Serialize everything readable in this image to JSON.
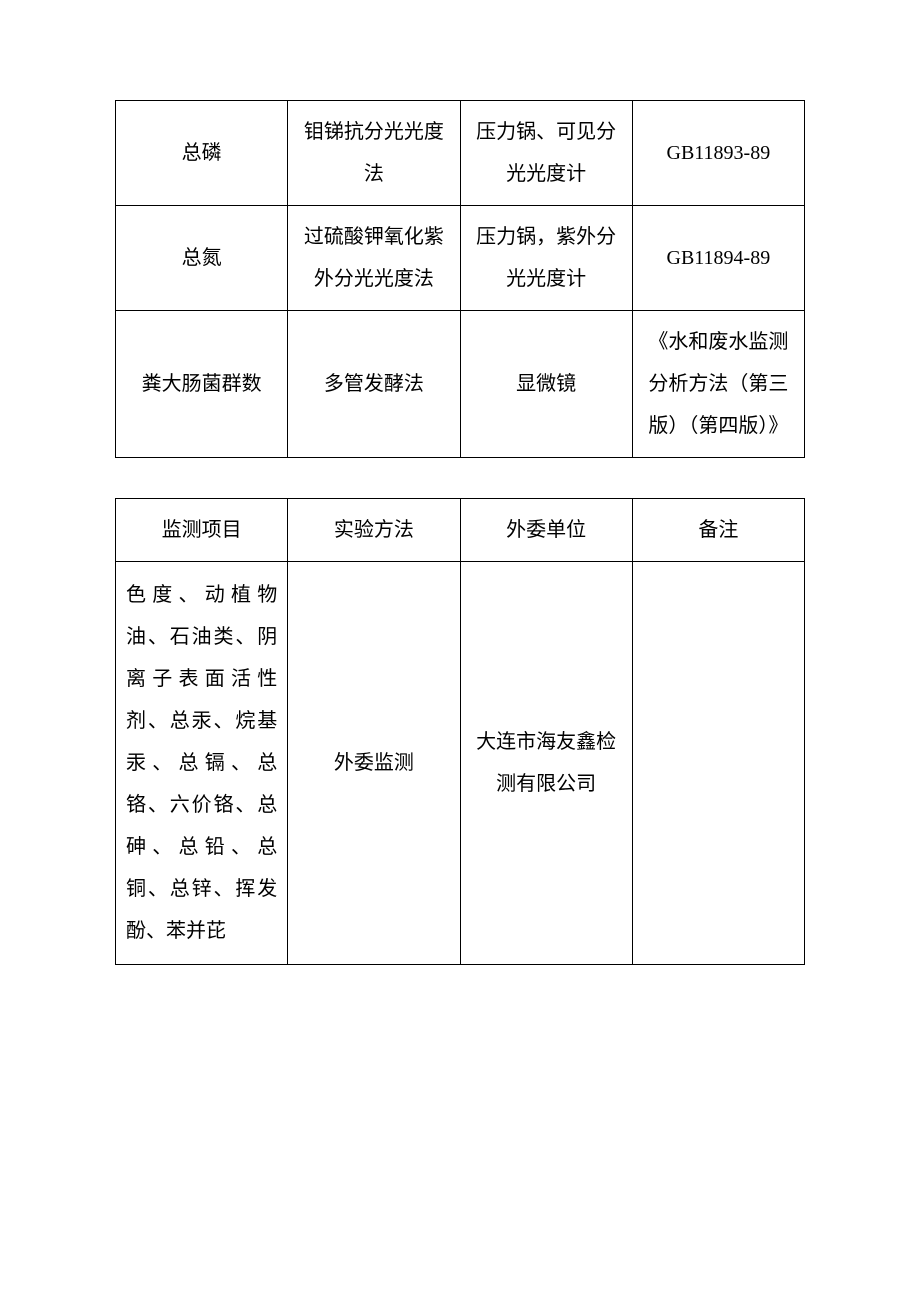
{
  "table1": {
    "rows": [
      {
        "item": "总磷",
        "method": "钼锑抗分光光度法",
        "equipment": "压力锅、可见分光光度计",
        "standard": "GB11893-89"
      },
      {
        "item": "总氮",
        "method": "过硫酸钾氧化紫外分光光度法",
        "equipment": "压力锅，紫外分光光度计",
        "standard": "GB11894-89"
      },
      {
        "item": "粪大肠菌群数",
        "method": "多管发酵法",
        "equipment": "显微镜",
        "standard": "《水和废水监测分析方法（第三版）（第四版）》"
      }
    ]
  },
  "table2": {
    "header": {
      "col1": "监测项目",
      "col2": "实验方法",
      "col3": "外委单位",
      "col4": "备注"
    },
    "rows": [
      {
        "item": "色度、动植物油、石油类、阴离子表面活性剂、总汞、烷基汞、总镉、总铬、六价铬、总砷、总铅、总铜、总锌、挥发酚、苯并芘",
        "method": "外委监测",
        "unit": "大连市海友鑫检测有限公司",
        "remark": ""
      }
    ]
  }
}
